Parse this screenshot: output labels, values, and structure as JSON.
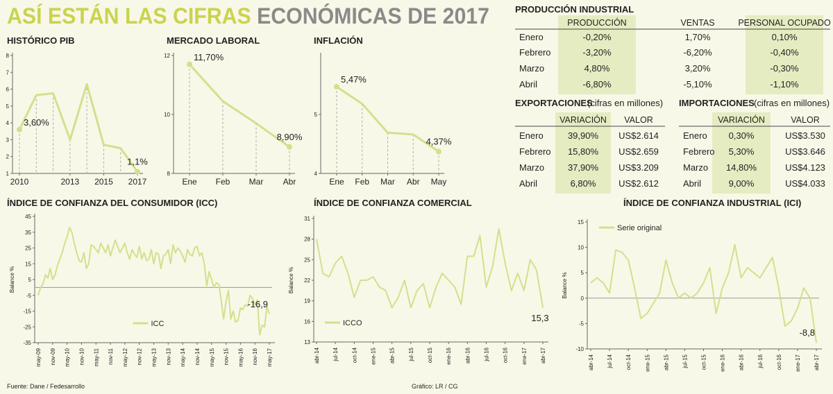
{
  "title": [
    "ASÍ ESTÁN LAS CIFRAS",
    "ECONÓMICAS DE 2017"
  ],
  "chart_data": [
    {
      "type": "line",
      "title": "HISTÓRICO PIB",
      "x": [
        2010,
        2011,
        2012,
        2013,
        2014,
        2015,
        2016,
        2017
      ],
      "xlim": [
        2010,
        2017
      ],
      "xticks": [
        2010,
        2013,
        2015,
        2017
      ],
      "ylim": [
        1,
        8
      ],
      "yticks": [
        1,
        2,
        3,
        4,
        5,
        6,
        7,
        8
      ],
      "series": [
        {
          "color": "#d6de8c",
          "values": [
            3.6,
            5.65,
            5.75,
            3.0,
            6.3,
            2.7,
            2.5,
            1.1
          ],
          "value_labels": [
            "3,60%",
            null,
            null,
            null,
            null,
            null,
            null,
            "1,1%"
          ]
        }
      ]
    },
    {
      "type": "line",
      "title": "MERCADO LABORAL",
      "categories": [
        "Ene",
        "Feb",
        "Mar",
        "Abr"
      ],
      "ylim": [
        8,
        12
      ],
      "yticks": [
        8,
        10,
        12
      ],
      "series": [
        {
          "color": "#d6de8c",
          "values": [
            11.7,
            10.45,
            9.7,
            8.9
          ],
          "value_labels": [
            "11,70%",
            null,
            null,
            "8,90%"
          ]
        }
      ]
    },
    {
      "type": "line",
      "title": "INFLACIÓN",
      "categories": [
        "Ene",
        "Feb",
        "Mar",
        "Abr",
        "May"
      ],
      "ylim": [
        4,
        6
      ],
      "yticks": [
        4,
        5
      ],
      "series": [
        {
          "color": "#d6de8c",
          "values": [
            5.47,
            5.18,
            4.69,
            4.66,
            4.37
          ],
          "value_labels": [
            "5,47%",
            null,
            null,
            null,
            "4,37%"
          ]
        }
      ]
    },
    {
      "type": "line",
      "title": "ÍNDICE DE CONFIANZA DEL CONSUMIDOR (ICC)",
      "y_label": "Balance %",
      "legend": "lower center",
      "categories": [
        "may-09",
        null,
        null,
        null,
        null,
        null,
        "nov-09",
        null,
        null,
        null,
        null,
        null,
        "may-10",
        null,
        null,
        null,
        null,
        null,
        "nov-10",
        null,
        null,
        null,
        null,
        null,
        "may-11",
        null,
        null,
        null,
        null,
        null,
        "nov-11",
        null,
        null,
        null,
        null,
        null,
        "may-12",
        null,
        null,
        null,
        null,
        null,
        "nov-12",
        null,
        null,
        null,
        null,
        null,
        "may-13",
        null,
        null,
        null,
        null,
        null,
        "nov-13",
        null,
        null,
        null,
        null,
        null,
        "may-14",
        null,
        null,
        null,
        null,
        null,
        "nov-14",
        null,
        null,
        null,
        null,
        null,
        "may-15",
        null,
        null,
        null,
        null,
        null,
        "nov-15",
        null,
        null,
        null,
        null,
        null,
        "may-16",
        null,
        null,
        null,
        null,
        null,
        "nov-16",
        null,
        null,
        null,
        null,
        null,
        "may-17"
      ],
      "ylim": [
        -35,
        45
      ],
      "yticks": [
        -35,
        -25,
        -15,
        -5,
        5,
        15,
        25,
        35,
        45
      ],
      "series": [
        {
          "name": "ICC",
          "color": "#d6de8c",
          "values": [
            -5,
            0,
            2,
            8,
            6,
            12,
            5,
            8,
            14,
            18,
            22,
            28,
            32,
            38,
            35,
            28,
            22,
            17,
            16,
            22,
            12,
            15,
            27,
            26,
            24,
            22,
            28,
            25,
            22,
            27,
            20,
            25,
            30,
            26,
            22,
            25,
            28,
            22,
            18,
            24,
            21,
            19,
            26,
            18,
            22,
            17,
            18,
            24,
            15,
            22,
            21,
            12,
            20,
            21,
            24,
            15,
            27,
            22,
            25,
            23,
            20,
            16,
            24,
            21,
            20,
            25,
            26,
            20,
            22,
            15,
            1,
            10,
            5,
            0,
            3,
            2,
            -8,
            -20,
            -9,
            -2,
            -20,
            -15,
            -22,
            -21,
            -13,
            -14,
            -11,
            -12,
            -5,
            -7,
            -11,
            -8,
            -30,
            -24,
            -25,
            -12,
            -16.9
          ],
          "value_labels": [
            null,
            null,
            null,
            null,
            null,
            null,
            null,
            null,
            null,
            null,
            null,
            null,
            null,
            null,
            null,
            null,
            null,
            null,
            null,
            null,
            null,
            null,
            null,
            null,
            null,
            null,
            null,
            null,
            null,
            null,
            null,
            null,
            null,
            null,
            null,
            null,
            null,
            null,
            null,
            null,
            null,
            null,
            null,
            null,
            null,
            null,
            null,
            null,
            null,
            null,
            null,
            null,
            null,
            null,
            null,
            null,
            null,
            null,
            null,
            null,
            null,
            null,
            null,
            null,
            null,
            null,
            null,
            null,
            null,
            null,
            null,
            null,
            null,
            null,
            null,
            null,
            null,
            null,
            null,
            null,
            null,
            null,
            null,
            null,
            null,
            null,
            null,
            null,
            null,
            null,
            null,
            null,
            null,
            null,
            null,
            null,
            "-16,9"
          ]
        }
      ]
    },
    {
      "type": "line",
      "title": "ÍNDICE DE CONFIANZA COMERCIAL",
      "y_label": "Balance %",
      "legend": "lower left",
      "annotation": "15,3",
      "categories": [
        "abr-14",
        null,
        null,
        "jul-14",
        null,
        null,
        "oct-14",
        null,
        null,
        "ene-15",
        null,
        null,
        "abr-15",
        null,
        null,
        "jul-15",
        null,
        null,
        "oct-15",
        null,
        null,
        "ene-16",
        null,
        null,
        "abr-16",
        null,
        null,
        "jul-16",
        null,
        null,
        "oct-16",
        null,
        null,
        "ene-17",
        null,
        null,
        "abr-17"
      ],
      "ylim": [
        13,
        31
      ],
      "yticks": [
        13,
        16,
        19,
        22,
        25,
        28,
        31
      ],
      "series": [
        {
          "name": "ICCO",
          "color": "#d6de8c",
          "values": [
            28,
            23,
            22.5,
            24.5,
            25.5,
            23,
            19.5,
            22,
            22,
            22.5,
            21,
            20.5,
            18,
            19.5,
            22,
            18,
            20.5,
            21.5,
            18,
            21,
            23,
            22,
            21,
            18.5,
            25.5,
            25.5,
            28.5,
            21,
            24,
            29.5,
            24.5,
            20.5,
            23,
            20.5,
            25,
            23.5,
            18
          ]
        }
      ]
    },
    {
      "type": "line",
      "title": "ÍNDICE DE CONFIANZA INDUSTRIAL (ICI)",
      "y_label": "Balance %",
      "legend": "upper left",
      "categories": [
        "abr-14",
        null,
        null,
        "jul-14",
        null,
        null,
        "oct-14",
        null,
        null,
        "ene-15",
        null,
        null,
        "abr-15",
        null,
        null,
        "jul-15",
        null,
        null,
        "oct-15",
        null,
        null,
        "ene-16",
        null,
        null,
        "abr-16",
        null,
        null,
        "jul-16",
        null,
        null,
        "oct-16",
        null,
        null,
        "ene-17",
        null,
        null,
        "abr-17"
      ],
      "ylim": [
        -10,
        15
      ],
      "yticks": [
        -10,
        -5,
        0,
        5,
        10,
        15
      ],
      "series": [
        {
          "name": "Serie original",
          "color": "#d6de8c",
          "values": [
            3,
            4,
            3,
            1,
            9.5,
            9,
            7.5,
            2,
            -4,
            -3,
            -1,
            1,
            7.5,
            3,
            0,
            1,
            0,
            1,
            3,
            6,
            -3,
            2,
            5,
            10.5,
            4,
            6,
            5,
            4,
            6,
            8,
            2,
            -5.5,
            -4.5,
            -2,
            2,
            0,
            -8.8
          ],
          "value_labels": [
            null,
            null,
            null,
            null,
            null,
            null,
            null,
            null,
            null,
            null,
            null,
            null,
            null,
            null,
            null,
            null,
            null,
            null,
            null,
            null,
            null,
            null,
            null,
            null,
            null,
            null,
            null,
            null,
            null,
            null,
            null,
            null,
            null,
            null,
            null,
            null,
            "-8,8"
          ]
        }
      ]
    }
  ],
  "produccion_industrial": {
    "title": "PRODUCCIÓN INDUSTRIAL",
    "columns": [
      "PRODUCCIÓN",
      "VENTAS",
      "PERSONAL OCUPADO"
    ],
    "rows": [
      [
        "Enero",
        "-0,20%",
        "1,70%",
        "0,10%"
      ],
      [
        "Febrero",
        "-3,20%",
        "-6,20%",
        "-0,40%"
      ],
      [
        "Marzo",
        "4,80%",
        "3,20%",
        "-0,30%"
      ],
      [
        "Abril",
        "-6,80%",
        "-5,10%",
        "-1,10%"
      ]
    ]
  },
  "exportaciones": {
    "title": "EXPORTACIONES",
    "subtitle": "(cifras en millones)",
    "columns": [
      "VARIACIÓN",
      "VALOR"
    ],
    "rows": [
      [
        "Enero",
        "39,90%",
        "US$2.614"
      ],
      [
        "Febrero",
        "15,80%",
        "US$2.659"
      ],
      [
        "Marzo",
        "37,90%",
        "US$3.209"
      ],
      [
        "Abril",
        "6,80%",
        "US$2.612"
      ]
    ]
  },
  "importaciones": {
    "title": "IMPORTACIONES",
    "subtitle": "(cifras en millones)",
    "columns": [
      "VARIACIÓN",
      "VALOR"
    ],
    "rows": [
      [
        "Enero",
        "0,30%",
        "US$3.530"
      ],
      [
        "Febrero",
        "5,30%",
        "US$3.646"
      ],
      [
        "Marzo",
        "14,80%",
        "US$4.123"
      ],
      [
        "Abril",
        "9,00%",
        "US$4.033"
      ]
    ]
  },
  "source": "Fuente: Dane / Fedesarrollo",
  "credit": "Gráfico: LR / CG"
}
